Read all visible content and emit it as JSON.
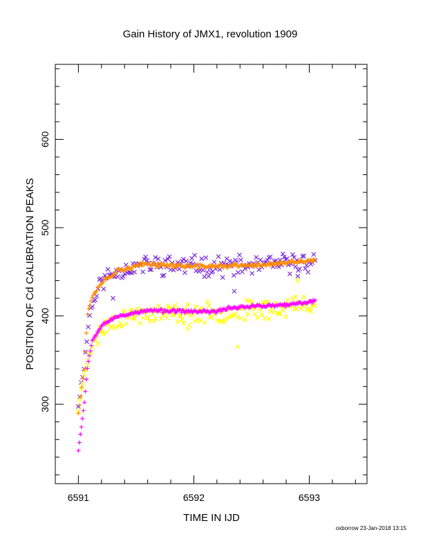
{
  "chart_data": {
    "type": "scatter",
    "title": "Gain History of JMX1, revolution 1909",
    "xlabel": "TIME IN IJD",
    "ylabel": "POSITION OF Cd CALIBRATION PEAKS",
    "xlim": [
      6590.8,
      6593.5
    ],
    "ylim": [
      210,
      685
    ],
    "x_ticks": [
      6591,
      6592,
      6593
    ],
    "y_ticks": [
      300,
      400,
      500,
      600
    ],
    "grid": false,
    "legend": "none",
    "footer": "oxborrow 23-Jan-2018 13:15",
    "series": [
      {
        "marker": "x",
        "color": "#7B2BE2",
        "x_range": [
          6591.0,
          6593.05
        ],
        "count": 170,
        "spread": 9,
        "seed": 11,
        "curve": [
          [
            6591.0,
            300
          ],
          [
            6591.05,
            345
          ],
          [
            6591.1,
            405
          ],
          [
            6591.2,
            440
          ],
          [
            6591.35,
            452
          ],
          [
            6591.6,
            458
          ],
          [
            6592.0,
            457
          ],
          [
            6592.5,
            456
          ],
          [
            6593.05,
            462
          ]
        ],
        "outliers": [
          [
            6591.3,
            420
          ],
          [
            6592.35,
            428
          ],
          [
            6592.9,
            445
          ]
        ]
      },
      {
        "marker": "x",
        "color": "#FFFF00",
        "x_range": [
          6591.0,
          6593.05
        ],
        "count": 170,
        "spread": 9,
        "seed": 23,
        "curve": [
          [
            6591.0,
            295
          ],
          [
            6591.05,
            335
          ],
          [
            6591.1,
            360
          ],
          [
            6591.2,
            385
          ],
          [
            6591.35,
            398
          ],
          [
            6591.6,
            403
          ],
          [
            6592.0,
            402
          ],
          [
            6592.5,
            406
          ],
          [
            6593.05,
            414
          ]
        ],
        "outliers": [
          [
            6592.38,
            365
          ],
          [
            6591.95,
            385
          ],
          [
            6592.9,
            440
          ]
        ]
      },
      {
        "marker": "+",
        "color": "#FF8C00",
        "x_range": [
          6591.0,
          6593.05
        ],
        "count": 210,
        "spread": 2,
        "seed": 37,
        "curve": [
          [
            6591.0,
            290
          ],
          [
            6591.05,
            340
          ],
          [
            6591.08,
            405
          ],
          [
            6591.12,
            422
          ],
          [
            6591.2,
            438
          ],
          [
            6591.35,
            452
          ],
          [
            6591.6,
            459
          ],
          [
            6592.0,
            456
          ],
          [
            6592.5,
            457
          ],
          [
            6592.8,
            460
          ],
          [
            6593.05,
            463
          ]
        ],
        "outliers": []
      },
      {
        "marker": "+",
        "color": "#FF00FF",
        "x_range": [
          6591.0,
          6593.05
        ],
        "count": 240,
        "spread": 1.5,
        "seed": 53,
        "curve": [
          [
            6591.0,
            248
          ],
          [
            6591.05,
            300
          ],
          [
            6591.08,
            345
          ],
          [
            6591.12,
            372
          ],
          [
            6591.2,
            390
          ],
          [
            6591.35,
            400
          ],
          [
            6591.6,
            406
          ],
          [
            6592.0,
            405
          ],
          [
            6592.2,
            405
          ],
          [
            6592.3,
            409
          ],
          [
            6592.5,
            411
          ],
          [
            6592.8,
            412
          ],
          [
            6593.05,
            417
          ]
        ],
        "outliers": []
      }
    ]
  }
}
